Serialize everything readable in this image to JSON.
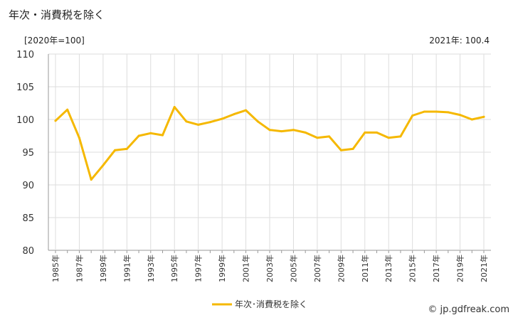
{
  "title": "年次・消費税を除く",
  "unit_label": "[2020年=100]",
  "latest_note": "2021年: 100.4",
  "source": "© jp.gdfreak.com",
  "chart_data": {
    "type": "line",
    "x": [
      1985,
      1986,
      1987,
      1988,
      1989,
      1990,
      1991,
      1992,
      1993,
      1994,
      1995,
      1996,
      1997,
      1998,
      1999,
      2000,
      2001,
      2002,
      2003,
      2004,
      2005,
      2006,
      2007,
      2008,
      2009,
      2010,
      2011,
      2012,
      2013,
      2014,
      2015,
      2016,
      2017,
      2018,
      2019,
      2020,
      2021
    ],
    "x_tick_labels": [
      "1985年",
      "1987年",
      "1989年",
      "1991年",
      "1993年",
      "1995年",
      "1997年",
      "1999年",
      "2001年",
      "2003年",
      "2005年",
      "2007年",
      "2009年",
      "2011年",
      "2013年",
      "2015年",
      "2017年",
      "2019年",
      "2021年"
    ],
    "series": [
      {
        "name": "年次･消費税を除く",
        "color": "#f5b800",
        "values": [
          99.8,
          101.5,
          97.2,
          90.8,
          93.0,
          95.3,
          95.5,
          97.5,
          97.9,
          97.6,
          101.9,
          99.7,
          99.2,
          99.6,
          100.1,
          100.8,
          101.4,
          99.7,
          98.4,
          98.2,
          98.4,
          98.0,
          97.2,
          97.4,
          95.3,
          95.5,
          98.0,
          98.0,
          97.2,
          97.4,
          100.6,
          101.2,
          101.2,
          101.1,
          100.7,
          100.0,
          100.4
        ]
      }
    ],
    "y_ticks": [
      80,
      85,
      90,
      95,
      100,
      105,
      110
    ],
    "ylim": [
      80,
      110
    ],
    "grid": true,
    "legend_position": "bottom-center"
  }
}
